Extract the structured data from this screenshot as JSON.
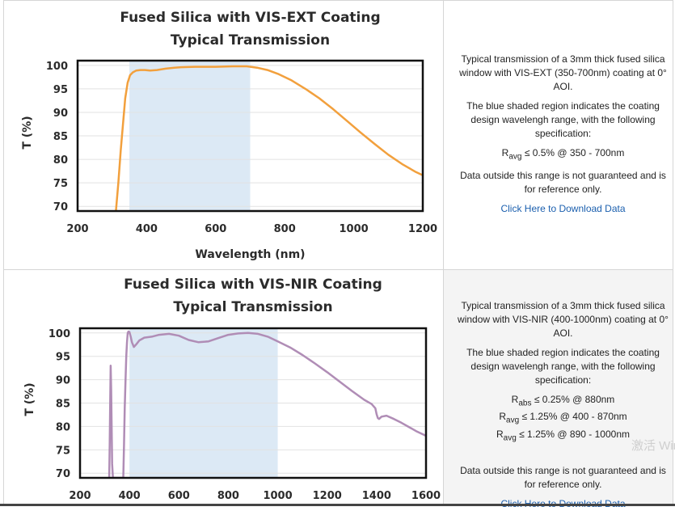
{
  "charts": [
    {
      "title_line1": "Fused Silica with VIS-EXT Coating",
      "title_line2": "Typical Transmission",
      "info": {
        "p1": "Typical transmission of a 3mm thick fused silica window with VIS-EXT (350-700nm) coating at 0° AOI.",
        "p2": "The blue shaded region indicates the coating design wavelengh range, with the following specification:",
        "specs": [
          {
            "sym": "R",
            "sub": "avg",
            "text": "≤ 0.5% @ 350 - 700nm"
          }
        ],
        "p3": "Data outside this range is not guaranteed and is for reference only.",
        "link": "Click Here to Download Data"
      }
    },
    {
      "title_line1": "Fused Silica with VIS-NIR Coating",
      "title_line2": "Typical Transmission",
      "info": {
        "p1": "Typical transmission of a 3mm thick fused silica window with VIS-NIR (400-1000nm) coating at 0° AOI.",
        "p2": "The blue shaded region indicates the coating design wavelengh range, with the following specification:",
        "specs": [
          {
            "sym": "R",
            "sub": "abs",
            "text": "≤ 0.25% @ 880nm"
          },
          {
            "sym": "R",
            "sub": "avg",
            "text": "≤ 1.25% @ 400 - 870nm"
          },
          {
            "sym": "R",
            "sub": "avg",
            "text": "≤ 1.25% @ 890 - 1000nm"
          }
        ],
        "p3": "Data outside this range is not guaranteed and is for reference only.",
        "link": "Click Here to Download Data"
      }
    }
  ],
  "watermark": "激活 Windows 转到设置",
  "chart_data": [
    {
      "type": "line",
      "title": "Fused Silica with VIS-EXT Coating Typical Transmission",
      "xlabel": "Wavelength (nm)",
      "ylabel": "T (%)",
      "xlim": [
        200,
        1200
      ],
      "ylim": [
        69,
        101
      ],
      "xticks": [
        200,
        400,
        600,
        800,
        1000,
        1200
      ],
      "yticks": [
        70,
        75,
        80,
        85,
        90,
        95,
        100
      ],
      "shaded_range": [
        350,
        700
      ],
      "colors": {
        "line": "#f2a03d",
        "shade": "#dce9f5",
        "frame": "#111111"
      },
      "series": [
        {
          "x": [
            311,
            318,
            325,
            332,
            338,
            345,
            352,
            360,
            370,
            382,
            395,
            410,
            430,
            455,
            480,
            500,
            540,
            600,
            650,
            690,
            720,
            750,
            780,
            820,
            860,
            900,
            940,
            980,
            1020,
            1060,
            1100,
            1140,
            1180,
            1200
          ],
          "y": [
            69,
            75,
            82,
            88,
            93,
            96.3,
            97.9,
            98.5,
            98.9,
            99.0,
            99.0,
            98.9,
            99.0,
            99.3,
            99.5,
            99.6,
            99.7,
            99.7,
            99.8,
            99.8,
            99.5,
            99.0,
            98.2,
            96.8,
            95.0,
            93.0,
            90.7,
            88.2,
            85.7,
            83.3,
            81.0,
            79.0,
            77.3,
            76.6
          ]
        }
      ]
    },
    {
      "type": "line",
      "title": "Fused Silica with VIS-NIR Coating Typical Transmission",
      "xlabel": "",
      "ylabel": "T (%)",
      "xlim": [
        200,
        1600
      ],
      "ylim": [
        69,
        101
      ],
      "xticks": [
        200,
        400,
        600,
        800,
        1000,
        1200,
        1400,
        1600
      ],
      "yticks": [
        70,
        75,
        80,
        85,
        90,
        95,
        100
      ],
      "shaded_range": [
        400,
        1000
      ],
      "colors": {
        "line": "#b08db6",
        "shade": "#dce9f5",
        "frame": "#111111"
      },
      "series": [
        {
          "x": [
            318,
            320,
            322,
            324,
            326,
            328,
            330,
            333,
            375,
            378,
            381,
            384,
            387,
            390,
            393,
            396,
            400,
            405,
            410,
            418,
            428,
            440,
            460,
            490,
            520,
            560,
            600,
            640,
            680,
            720,
            760,
            800,
            840,
            880,
            920,
            960,
            1000,
            1050,
            1100,
            1150,
            1200,
            1250,
            1300,
            1350,
            1380,
            1395,
            1400,
            1405,
            1410,
            1420,
            1440,
            1470,
            1500,
            1530,
            1560,
            1600
          ],
          "y": [
            69,
            76,
            85,
            93,
            88,
            80,
            72,
            69,
            69,
            76,
            84,
            90,
            95,
            98,
            100,
            100.3,
            100.2,
            99.2,
            98,
            97,
            97.6,
            98.4,
            99,
            99.2,
            99.6,
            99.8,
            99.4,
            98.5,
            98,
            98.2,
            98.9,
            99.6,
            99.9,
            100,
            99.8,
            99.2,
            98.2,
            96.9,
            95.3,
            93.5,
            91.6,
            89.6,
            87.6,
            85.7,
            84.8,
            83.9,
            82.6,
            81.8,
            81.6,
            82.1,
            82.3,
            81.6,
            80.8,
            79.9,
            79,
            78
          ]
        }
      ]
    }
  ]
}
